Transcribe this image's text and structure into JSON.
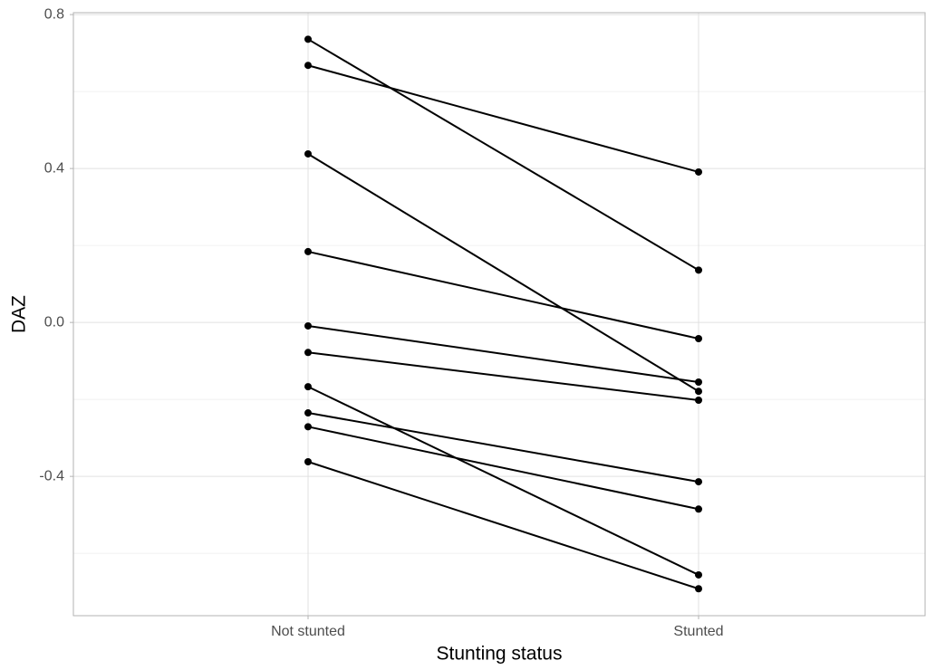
{
  "chart_data": {
    "type": "line",
    "x_label": "Stunting status",
    "y_label": "DAZ",
    "categories": [
      "Not stunted",
      "Stunted"
    ],
    "color": "#000000",
    "series": [
      {
        "values": [
          0.736,
          0.136
        ]
      },
      {
        "values": [
          0.668,
          0.391
        ]
      },
      {
        "values": [
          0.438,
          -0.179
        ]
      },
      {
        "values": [
          0.184,
          -0.042
        ]
      },
      {
        "values": [
          -0.009,
          -0.155
        ]
      },
      {
        "values": [
          -0.078,
          -0.202
        ]
      },
      {
        "values": [
          -0.167,
          -0.656
        ]
      },
      {
        "values": [
          -0.235,
          -0.414
        ]
      },
      {
        "values": [
          -0.271,
          -0.485
        ]
      },
      {
        "values": [
          -0.362,
          -0.692
        ]
      }
    ],
    "ylim": [
      -0.762,
      0.805
    ],
    "yticks": [
      0.8,
      0.4,
      {
        "value": 0,
        "label": "0.0"
      },
      -0.4
    ],
    "minor_yticks": [
      0.6,
      0.2,
      -0.2,
      -0.6
    ],
    "grid": true
  }
}
